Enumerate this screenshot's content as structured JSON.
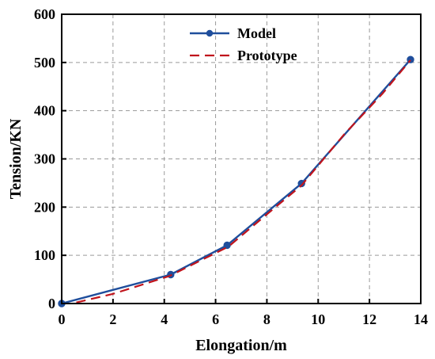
{
  "chart_data": {
    "type": "line",
    "xlabel": "Elongation/m",
    "ylabel": "Tension/KN",
    "xlim": [
      0,
      14
    ],
    "ylim": [
      0,
      600
    ],
    "xticks": [
      0,
      2,
      4,
      6,
      8,
      10,
      12,
      14
    ],
    "yticks": [
      0,
      100,
      200,
      300,
      400,
      500,
      600
    ],
    "grid": true,
    "legend_position": "top-center",
    "series": [
      {
        "name": "Model",
        "color": "#1f4e9c",
        "style": "solid-with-circle-markers",
        "x": [
          0,
          4.25,
          6.45,
          9.35,
          13.6
        ],
        "y": [
          0,
          60,
          121,
          249,
          506
        ]
      },
      {
        "name": "Prototype",
        "color": "#c0141c",
        "style": "dashed",
        "x": [
          0,
          2,
          4.2,
          6.5,
          8,
          9.35,
          11,
          12.5,
          13.6
        ],
        "y": [
          -5,
          20,
          57,
          118,
          185,
          245,
          350,
          435,
          505
        ]
      }
    ]
  }
}
